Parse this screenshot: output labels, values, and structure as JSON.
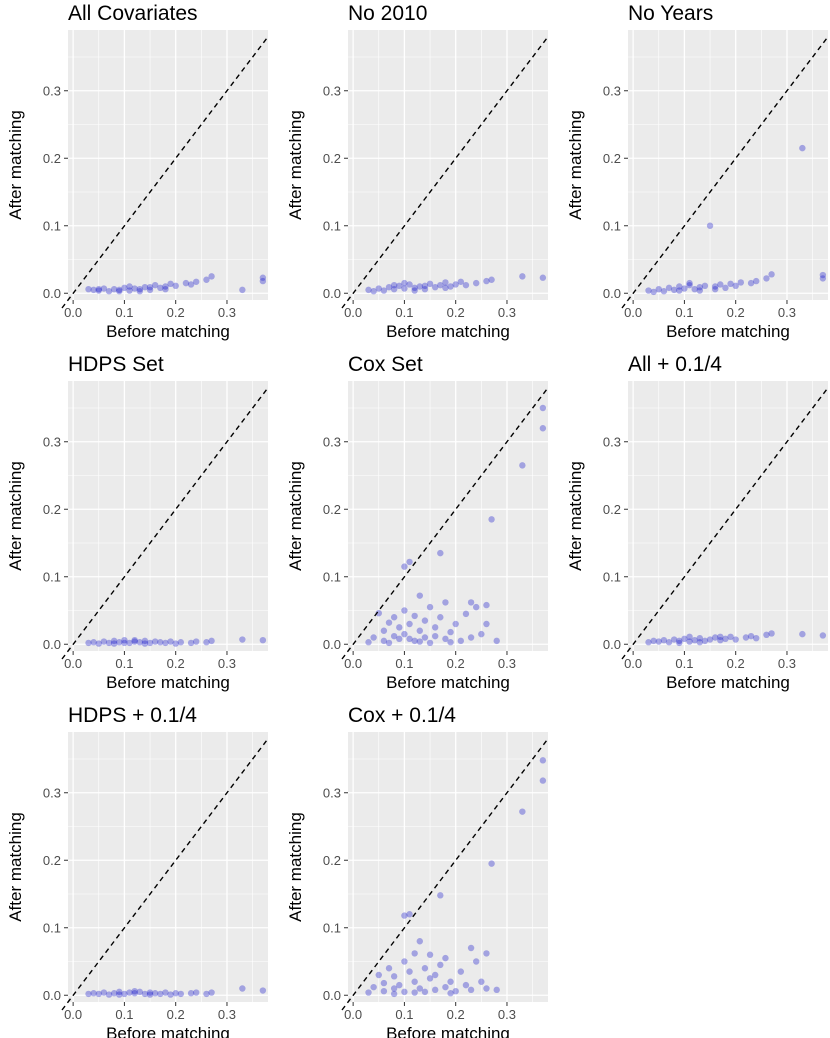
{
  "figure": {
    "background": "#ffffff",
    "panel_background": "#ebebeb",
    "grid_color": "#ffffff",
    "point_color": "#1a1acc",
    "point_opacity": 0.35,
    "reference_line": "dashed black y = x"
  },
  "chart_data": [
    {
      "type": "scatter",
      "title": "All Covariates",
      "xlabel": "Before matching",
      "ylabel": "After matching",
      "xlim": [
        -0.01,
        0.38
      ],
      "ylim": [
        -0.01,
        0.39
      ],
      "xticks": [
        "0.0",
        "0.1",
        "0.2",
        "0.3"
      ],
      "yticks": [
        "0.0",
        "0.1",
        "0.2",
        "0.3"
      ],
      "grid": true,
      "points": [
        [
          0.03,
          0.006
        ],
        [
          0.04,
          0.005
        ],
        [
          0.05,
          0.004
        ],
        [
          0.06,
          0.007
        ],
        [
          0.07,
          0.003
        ],
        [
          0.08,
          0.006
        ],
        [
          0.09,
          0.005
        ],
        [
          0.1,
          0.008
        ],
        [
          0.11,
          0.004
        ],
        [
          0.12,
          0.007
        ],
        [
          0.13,
          0.006
        ],
        [
          0.14,
          0.009
        ],
        [
          0.15,
          0.005
        ],
        [
          0.16,
          0.012
        ],
        [
          0.17,
          0.008
        ],
        [
          0.18,
          0.01
        ],
        [
          0.19,
          0.014
        ],
        [
          0.2,
          0.011
        ],
        [
          0.22,
          0.015
        ],
        [
          0.23,
          0.013
        ],
        [
          0.24,
          0.017
        ],
        [
          0.26,
          0.02
        ],
        [
          0.27,
          0.025
        ],
        [
          0.33,
          0.005
        ],
        [
          0.37,
          0.018
        ],
        [
          0.37,
          0.023
        ],
        [
          0.05,
          0.006
        ],
        [
          0.09,
          0.003
        ],
        [
          0.11,
          0.01
        ],
        [
          0.13,
          0.003
        ],
        [
          0.15,
          0.009
        ],
        [
          0.18,
          0.006
        ]
      ]
    },
    {
      "type": "scatter",
      "title": "No 2010",
      "xlabel": "Before matching",
      "ylabel": "After matching",
      "xlim": [
        -0.01,
        0.38
      ],
      "ylim": [
        -0.01,
        0.39
      ],
      "xticks": [
        "0.0",
        "0.1",
        "0.2",
        "0.3"
      ],
      "yticks": [
        "0.0",
        "0.1",
        "0.2",
        "0.3"
      ],
      "grid": true,
      "points": [
        [
          0.03,
          0.005
        ],
        [
          0.05,
          0.007
        ],
        [
          0.06,
          0.004
        ],
        [
          0.07,
          0.009
        ],
        [
          0.08,
          0.006
        ],
        [
          0.09,
          0.011
        ],
        [
          0.1,
          0.007
        ],
        [
          0.11,
          0.013
        ],
        [
          0.12,
          0.008
        ],
        [
          0.13,
          0.01
        ],
        [
          0.14,
          0.006
        ],
        [
          0.15,
          0.014
        ],
        [
          0.16,
          0.009
        ],
        [
          0.17,
          0.012
        ],
        [
          0.18,
          0.016
        ],
        [
          0.19,
          0.01
        ],
        [
          0.2,
          0.013
        ],
        [
          0.21,
          0.017
        ],
        [
          0.22,
          0.012
        ],
        [
          0.24,
          0.015
        ],
        [
          0.26,
          0.018
        ],
        [
          0.27,
          0.02
        ],
        [
          0.33,
          0.025
        ],
        [
          0.37,
          0.023
        ],
        [
          0.04,
          0.003
        ],
        [
          0.08,
          0.012
        ],
        [
          0.1,
          0.015
        ],
        [
          0.12,
          0.004
        ],
        [
          0.14,
          0.011
        ],
        [
          0.18,
          0.008
        ]
      ]
    },
    {
      "type": "scatter",
      "title": "No Years",
      "xlabel": "Before matching",
      "ylabel": "After matching",
      "xlim": [
        -0.01,
        0.38
      ],
      "ylim": [
        -0.01,
        0.39
      ],
      "xticks": [
        "0.0",
        "0.1",
        "0.2",
        "0.3"
      ],
      "yticks": [
        "0.0",
        "0.1",
        "0.2",
        "0.3"
      ],
      "grid": true,
      "points": [
        [
          0.03,
          0.004
        ],
        [
          0.05,
          0.006
        ],
        [
          0.06,
          0.003
        ],
        [
          0.07,
          0.008
        ],
        [
          0.08,
          0.005
        ],
        [
          0.09,
          0.01
        ],
        [
          0.1,
          0.007
        ],
        [
          0.11,
          0.012
        ],
        [
          0.12,
          0.006
        ],
        [
          0.13,
          0.009
        ],
        [
          0.14,
          0.011
        ],
        [
          0.15,
          0.1
        ],
        [
          0.16,
          0.01
        ],
        [
          0.17,
          0.013
        ],
        [
          0.18,
          0.008
        ],
        [
          0.19,
          0.014
        ],
        [
          0.2,
          0.011
        ],
        [
          0.21,
          0.016
        ],
        [
          0.23,
          0.015
        ],
        [
          0.24,
          0.018
        ],
        [
          0.26,
          0.022
        ],
        [
          0.27,
          0.028
        ],
        [
          0.33,
          0.215
        ],
        [
          0.37,
          0.022
        ],
        [
          0.37,
          0.027
        ],
        [
          0.04,
          0.002
        ],
        [
          0.09,
          0.004
        ],
        [
          0.11,
          0.015
        ],
        [
          0.13,
          0.004
        ],
        [
          0.16,
          0.006
        ]
      ]
    },
    {
      "type": "scatter",
      "title": "HDPS Set",
      "xlabel": "Before matching",
      "ylabel": "After matching",
      "xlim": [
        -0.01,
        0.38
      ],
      "ylim": [
        -0.01,
        0.39
      ],
      "xticks": [
        "0.0",
        "0.1",
        "0.2",
        "0.3"
      ],
      "yticks": [
        "0.0",
        "0.1",
        "0.2",
        "0.3"
      ],
      "grid": true,
      "points": [
        [
          0.03,
          0.002
        ],
        [
          0.04,
          0.003
        ],
        [
          0.05,
          0.001
        ],
        [
          0.06,
          0.004
        ],
        [
          0.07,
          0.002
        ],
        [
          0.08,
          0.005
        ],
        [
          0.09,
          0.003
        ],
        [
          0.1,
          0.006
        ],
        [
          0.11,
          0.002
        ],
        [
          0.12,
          0.004
        ],
        [
          0.13,
          0.003
        ],
        [
          0.14,
          0.005
        ],
        [
          0.15,
          0.002
        ],
        [
          0.16,
          0.004
        ],
        [
          0.17,
          0.003
        ],
        [
          0.18,
          0.002
        ],
        [
          0.19,
          0.004
        ],
        [
          0.2,
          0.001
        ],
        [
          0.21,
          0.003
        ],
        [
          0.23,
          0.002
        ],
        [
          0.24,
          0.004
        ],
        [
          0.26,
          0.003
        ],
        [
          0.27,
          0.005
        ],
        [
          0.33,
          0.007
        ],
        [
          0.37,
          0.006
        ],
        [
          0.08,
          0.001
        ],
        [
          0.1,
          0.002
        ],
        [
          0.12,
          0.006
        ],
        [
          0.14,
          0.001
        ]
      ]
    },
    {
      "type": "scatter",
      "title": "Cox Set",
      "xlabel": "Before matching",
      "ylabel": "After matching",
      "xlim": [
        -0.01,
        0.38
      ],
      "ylim": [
        -0.01,
        0.39
      ],
      "xticks": [
        "0.0",
        "0.1",
        "0.2",
        "0.3"
      ],
      "yticks": [
        "0.0",
        "0.1",
        "0.2",
        "0.3"
      ],
      "grid": true,
      "points": [
        [
          0.03,
          0.003
        ],
        [
          0.04,
          0.01
        ],
        [
          0.05,
          0.046
        ],
        [
          0.06,
          0.005
        ],
        [
          0.06,
          0.02
        ],
        [
          0.07,
          0.032
        ],
        [
          0.08,
          0.012
        ],
        [
          0.08,
          0.04
        ],
        [
          0.09,
          0.008
        ],
        [
          0.09,
          0.025
        ],
        [
          0.1,
          0.115
        ],
        [
          0.1,
          0.05
        ],
        [
          0.1,
          0.015
        ],
        [
          0.11,
          0.122
        ],
        [
          0.11,
          0.03
        ],
        [
          0.12,
          0.005
        ],
        [
          0.12,
          0.042
        ],
        [
          0.13,
          0.072
        ],
        [
          0.13,
          0.02
        ],
        [
          0.14,
          0.01
        ],
        [
          0.14,
          0.035
        ],
        [
          0.15,
          0.055
        ],
        [
          0.15,
          0.002
        ],
        [
          0.16,
          0.025
        ],
        [
          0.16,
          0.012
        ],
        [
          0.17,
          0.135
        ],
        [
          0.17,
          0.04
        ],
        [
          0.18,
          0.062
        ],
        [
          0.18,
          0.008
        ],
        [
          0.19,
          0.018
        ],
        [
          0.2,
          0.03
        ],
        [
          0.21,
          0.005
        ],
        [
          0.22,
          0.045
        ],
        [
          0.23,
          0.062
        ],
        [
          0.23,
          0.01
        ],
        [
          0.24,
          0.055
        ],
        [
          0.25,
          0.015
        ],
        [
          0.26,
          0.058
        ],
        [
          0.26,
          0.03
        ],
        [
          0.27,
          0.185
        ],
        [
          0.28,
          0.005
        ],
        [
          0.33,
          0.265
        ],
        [
          0.37,
          0.35
        ],
        [
          0.37,
          0.32
        ],
        [
          0.07,
          0.002
        ],
        [
          0.11,
          0.008
        ],
        [
          0.13,
          0.004
        ],
        [
          0.19,
          0.003
        ]
      ]
    },
    {
      "type": "scatter",
      "title": "All + 0.1/4",
      "xlabel": "Before matching",
      "ylabel": "After matching",
      "xlim": [
        -0.01,
        0.38
      ],
      "ylim": [
        -0.01,
        0.39
      ],
      "xticks": [
        "0.0",
        "0.1",
        "0.2",
        "0.3"
      ],
      "yticks": [
        "0.0",
        "0.1",
        "0.2",
        "0.3"
      ],
      "grid": true,
      "points": [
        [
          0.03,
          0.003
        ],
        [
          0.04,
          0.005
        ],
        [
          0.05,
          0.004
        ],
        [
          0.06,
          0.006
        ],
        [
          0.07,
          0.003
        ],
        [
          0.08,
          0.007
        ],
        [
          0.09,
          0.005
        ],
        [
          0.1,
          0.008
        ],
        [
          0.11,
          0.004
        ],
        [
          0.12,
          0.006
        ],
        [
          0.13,
          0.009
        ],
        [
          0.14,
          0.005
        ],
        [
          0.15,
          0.007
        ],
        [
          0.16,
          0.01
        ],
        [
          0.17,
          0.006
        ],
        [
          0.18,
          0.008
        ],
        [
          0.19,
          0.011
        ],
        [
          0.2,
          0.007
        ],
        [
          0.22,
          0.01
        ],
        [
          0.23,
          0.012
        ],
        [
          0.24,
          0.009
        ],
        [
          0.26,
          0.014
        ],
        [
          0.27,
          0.016
        ],
        [
          0.33,
          0.015
        ],
        [
          0.37,
          0.013
        ],
        [
          0.09,
          0.002
        ],
        [
          0.11,
          0.011
        ],
        [
          0.13,
          0.003
        ],
        [
          0.17,
          0.011
        ]
      ]
    },
    {
      "type": "scatter",
      "title": "HDPS + 0.1/4",
      "xlabel": "Before matching",
      "ylabel": "After matching",
      "xlim": [
        -0.01,
        0.38
      ],
      "ylim": [
        -0.01,
        0.39
      ],
      "xticks": [
        "0.0",
        "0.1",
        "0.2",
        "0.3"
      ],
      "yticks": [
        "0.0",
        "0.1",
        "0.2",
        "0.3"
      ],
      "grid": true,
      "points": [
        [
          0.03,
          0.002
        ],
        [
          0.04,
          0.003
        ],
        [
          0.05,
          0.002
        ],
        [
          0.06,
          0.004
        ],
        [
          0.07,
          0.001
        ],
        [
          0.08,
          0.003
        ],
        [
          0.09,
          0.005
        ],
        [
          0.1,
          0.002
        ],
        [
          0.11,
          0.004
        ],
        [
          0.12,
          0.003
        ],
        [
          0.13,
          0.005
        ],
        [
          0.14,
          0.002
        ],
        [
          0.15,
          0.004
        ],
        [
          0.16,
          0.003
        ],
        [
          0.17,
          0.002
        ],
        [
          0.18,
          0.004
        ],
        [
          0.19,
          0.001
        ],
        [
          0.2,
          0.003
        ],
        [
          0.21,
          0.002
        ],
        [
          0.23,
          0.003
        ],
        [
          0.24,
          0.004
        ],
        [
          0.26,
          0.002
        ],
        [
          0.27,
          0.004
        ],
        [
          0.33,
          0.01
        ],
        [
          0.37,
          0.007
        ],
        [
          0.09,
          0.001
        ],
        [
          0.12,
          0.006
        ],
        [
          0.15,
          0.001
        ]
      ]
    },
    {
      "type": "scatter",
      "title": "Cox + 0.1/4",
      "xlabel": "Before matching",
      "ylabel": "After matching",
      "xlim": [
        -0.01,
        0.38
      ],
      "ylim": [
        -0.01,
        0.39
      ],
      "xticks": [
        "0.0",
        "0.1",
        "0.2",
        "0.3"
      ],
      "yticks": [
        "0.0",
        "0.1",
        "0.2",
        "0.3"
      ],
      "grid": true,
      "points": [
        [
          0.03,
          0.004
        ],
        [
          0.04,
          0.012
        ],
        [
          0.05,
          0.03
        ],
        [
          0.06,
          0.006
        ],
        [
          0.06,
          0.018
        ],
        [
          0.07,
          0.04
        ],
        [
          0.08,
          0.01
        ],
        [
          0.08,
          0.028
        ],
        [
          0.09,
          0.015
        ],
        [
          0.1,
          0.118
        ],
        [
          0.1,
          0.05
        ],
        [
          0.1,
          0.005
        ],
        [
          0.11,
          0.12
        ],
        [
          0.11,
          0.035
        ],
        [
          0.12,
          0.02
        ],
        [
          0.12,
          0.062
        ],
        [
          0.13,
          0.08
        ],
        [
          0.13,
          0.01
        ],
        [
          0.14,
          0.04
        ],
        [
          0.14,
          0.005
        ],
        [
          0.15,
          0.06
        ],
        [
          0.15,
          0.025
        ],
        [
          0.16,
          0.03
        ],
        [
          0.16,
          0.008
        ],
        [
          0.17,
          0.148
        ],
        [
          0.17,
          0.045
        ],
        [
          0.18,
          0.055
        ],
        [
          0.18,
          0.012
        ],
        [
          0.19,
          0.02
        ],
        [
          0.2,
          0.006
        ],
        [
          0.21,
          0.035
        ],
        [
          0.22,
          0.015
        ],
        [
          0.23,
          0.07
        ],
        [
          0.23,
          0.008
        ],
        [
          0.24,
          0.05
        ],
        [
          0.25,
          0.02
        ],
        [
          0.26,
          0.062
        ],
        [
          0.26,
          0.01
        ],
        [
          0.27,
          0.195
        ],
        [
          0.28,
          0.008
        ],
        [
          0.33,
          0.272
        ],
        [
          0.37,
          0.348
        ],
        [
          0.37,
          0.318
        ],
        [
          0.08,
          0.002
        ],
        [
          0.12,
          0.004
        ],
        [
          0.19,
          0.003
        ]
      ]
    }
  ]
}
